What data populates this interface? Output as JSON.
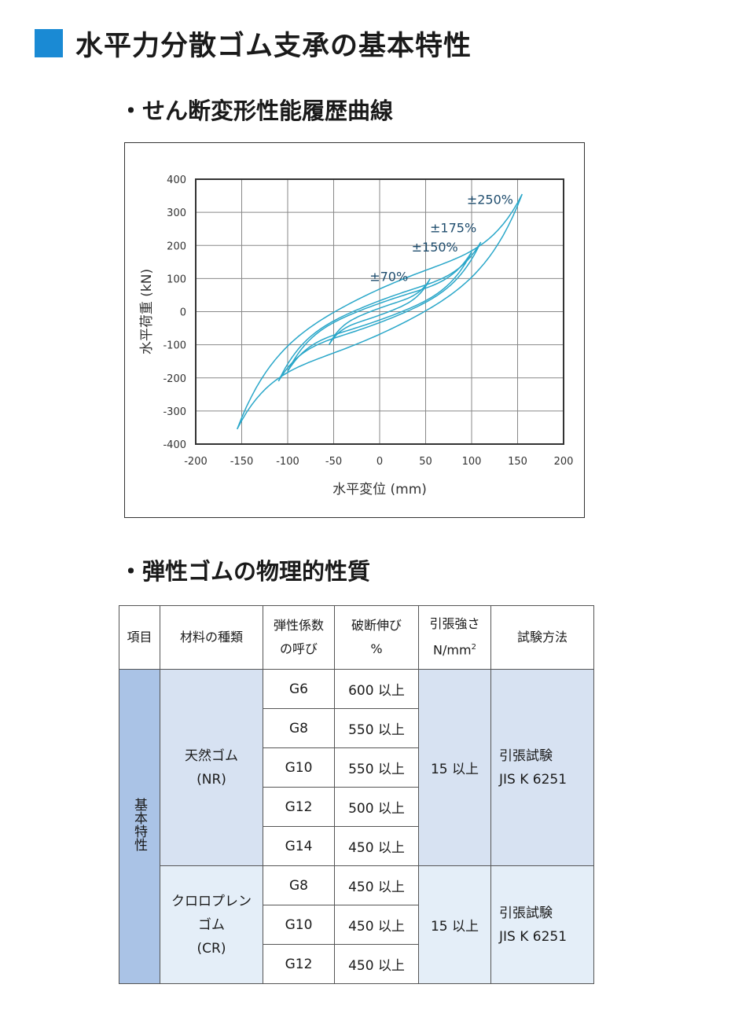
{
  "page": {
    "title": "水平力分散ゴム支承の基本特性",
    "section1": "・せん断変形性能履歴曲線",
    "section2": "・弾性ゴムの物理的性質"
  },
  "colors": {
    "accent": "#1a8ad4",
    "curve": "#2aa7c9",
    "table_header_cat": "#aac3e6",
    "nr_fill": "#d7e2f2",
    "cr_fill": "#e4eef8"
  },
  "chart_data": {
    "type": "line",
    "xlabel": "水平変位 (mm)",
    "ylabel": "水平荷重 (kN)",
    "xlim": [
      -200,
      200
    ],
    "ylim": [
      -400,
      400
    ],
    "x_ticks": [
      "-200",
      "-150",
      "-100",
      "-50",
      "0",
      "50",
      "100",
      "150",
      "200"
    ],
    "y_ticks": [
      "400",
      "300",
      "200",
      "100",
      "0",
      "-100",
      "-200",
      "-300",
      "-400"
    ],
    "grid": true,
    "annotations": [
      {
        "text": "±250%",
        "x": 120,
        "y": 325
      },
      {
        "text": "±175%",
        "x": 80,
        "y": 240
      },
      {
        "text": "±150%",
        "x": 60,
        "y": 182
      },
      {
        "text": "±70%",
        "x": 10,
        "y": 92
      }
    ],
    "series": [
      {
        "amp": 155,
        "peak": 355,
        "width": 0.55
      },
      {
        "amp": 110,
        "peak": 210,
        "width": 0.45
      },
      {
        "amp": 100,
        "peak": 180,
        "width": 0.4
      },
      {
        "amp": 55,
        "peak": 100,
        "width": 0.3
      }
    ]
  },
  "table": {
    "headers": {
      "item": "項目",
      "material": "材料の種類",
      "modulus_l1": "弾性係数",
      "modulus_l2": "の呼び",
      "elong_l1": "破断伸び",
      "elong_l2": "%",
      "tensile_l1": "引張強さ",
      "tensile_l2": "N/mm",
      "tensile_sup": "2",
      "method": "試験方法"
    },
    "category": "基本特性",
    "nr": {
      "material_l1": "天然ゴム",
      "material_l2": "(NR)",
      "rows": [
        {
          "grade": "G6",
          "elong": "600 以上"
        },
        {
          "grade": "G8",
          "elong": "550 以上"
        },
        {
          "grade": "G10",
          "elong": "550 以上"
        },
        {
          "grade": "G12",
          "elong": "500 以上"
        },
        {
          "grade": "G14",
          "elong": "450 以上"
        }
      ],
      "tensile": "15 以上",
      "method_l1": "引張試験",
      "method_l2": "JIS K 6251"
    },
    "cr": {
      "material_l1": "クロロプレン",
      "material_l2": "ゴム",
      "material_l3": "(CR)",
      "rows": [
        {
          "grade": "G8",
          "elong": "450 以上"
        },
        {
          "grade": "G10",
          "elong": "450 以上"
        },
        {
          "grade": "G12",
          "elong": "450 以上"
        }
      ],
      "tensile": "15 以上",
      "method_l1": "引張試験",
      "method_l2": "JIS K 6251"
    }
  }
}
